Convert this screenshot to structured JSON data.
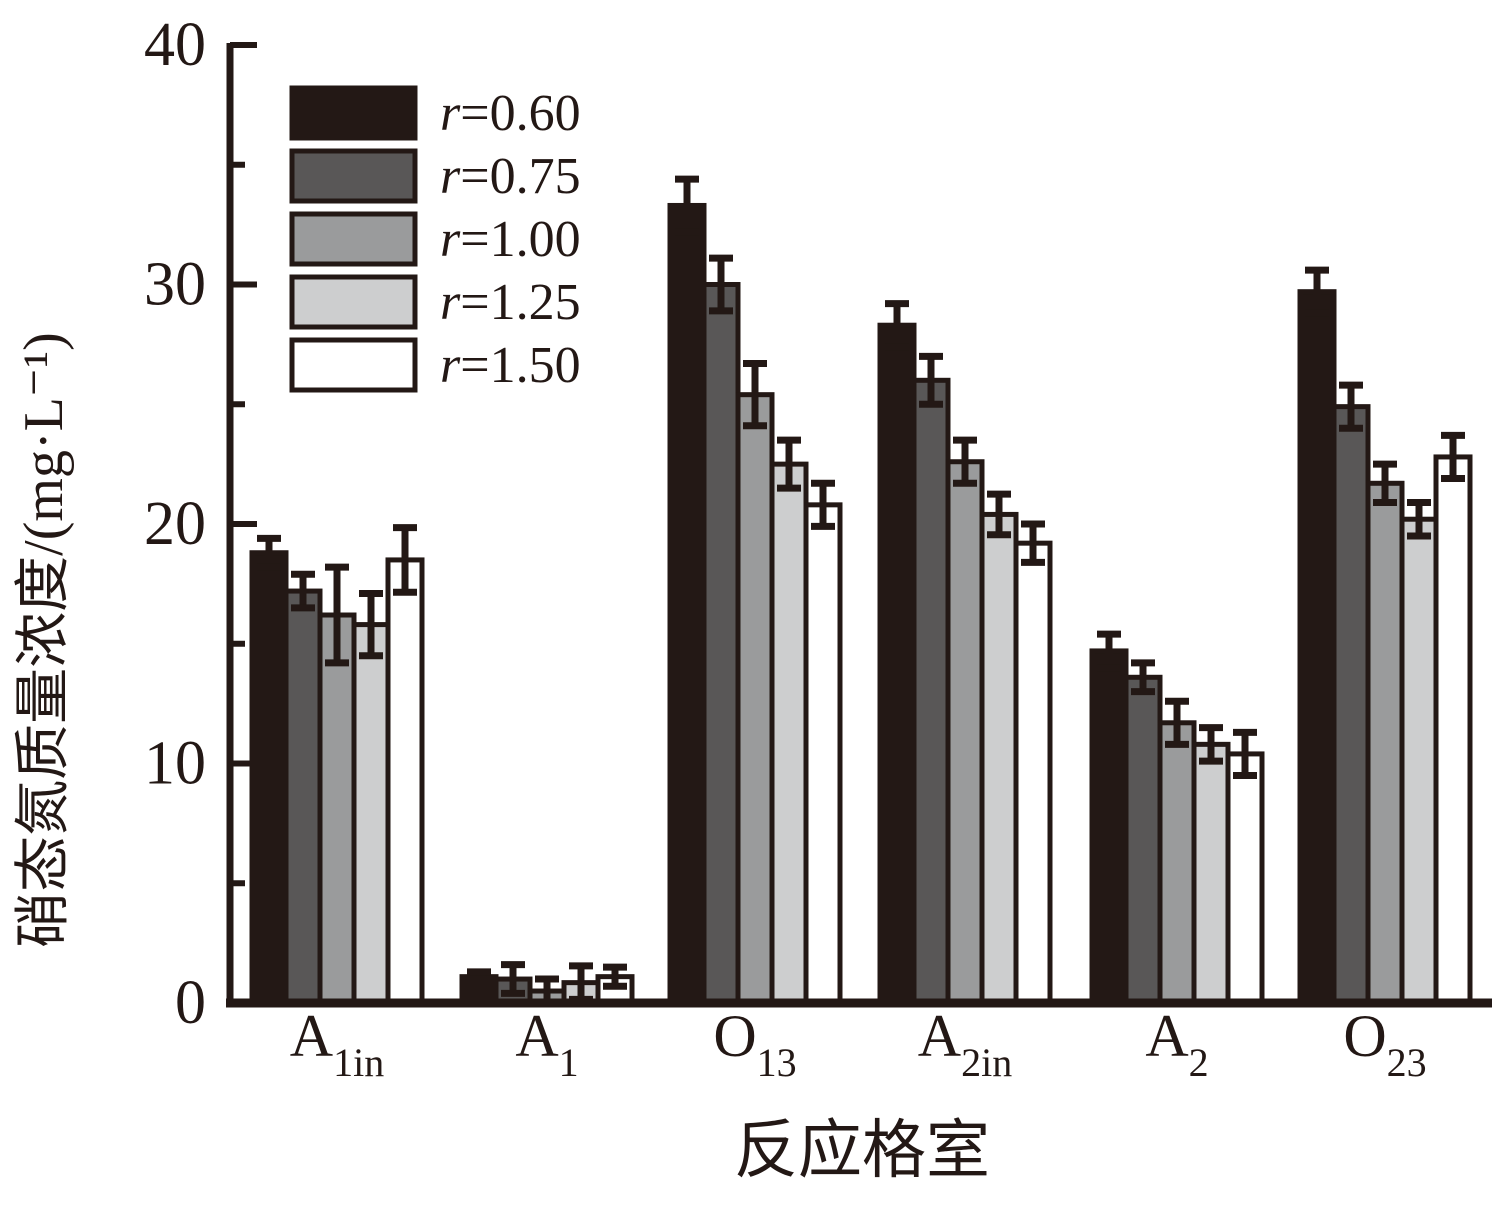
{
  "figure": {
    "background": "#ffffff",
    "ink": "#231815"
  },
  "chart_data": {
    "type": "bar",
    "title": "",
    "xlabel": "反应格室",
    "ylabel": "硝态氮质量浓度/(mg·L⁻¹)",
    "ylim": [
      0,
      40
    ],
    "y_major_ticks": [
      0,
      10,
      20,
      30,
      40
    ],
    "y_minor_ticks": [
      5,
      15,
      25,
      35
    ],
    "grid": false,
    "legend_position": "upper-left-inside",
    "error_bars": true,
    "categories": [
      {
        "id": "A1in",
        "main": "A",
        "sub": "1in"
      },
      {
        "id": "A1",
        "main": "A",
        "sub": "1"
      },
      {
        "id": "O13",
        "main": "O",
        "sub": "13"
      },
      {
        "id": "A2in",
        "main": "A",
        "sub": "2in"
      },
      {
        "id": "A2",
        "main": "A",
        "sub": "2"
      },
      {
        "id": "O23",
        "main": "O",
        "sub": "23"
      }
    ],
    "series": [
      {
        "name": "r=0.60",
        "var": "r",
        "rest": "=0.60",
        "color": "#231815",
        "values": [
          18.8,
          1.1,
          33.3,
          28.3,
          14.7,
          29.7
        ],
        "errors": [
          0.6,
          0.2,
          1.1,
          0.9,
          0.7,
          0.9
        ]
      },
      {
        "name": "r=0.75",
        "var": "r",
        "rest": "=0.75",
        "color": "#595757",
        "values": [
          17.2,
          1.0,
          30.0,
          26.0,
          13.6,
          24.9
        ],
        "errors": [
          0.7,
          0.6,
          1.1,
          1.0,
          0.6,
          0.9
        ]
      },
      {
        "name": "r=1.00",
        "var": "r",
        "rest": "=1.00",
        "color": "#9a9b9c",
        "values": [
          16.2,
          0.5,
          25.4,
          22.6,
          11.7,
          21.7
        ],
        "errors": [
          2.0,
          0.5,
          1.3,
          0.9,
          0.9,
          0.8
        ]
      },
      {
        "name": "r=1.25",
        "var": "r",
        "rest": "=1.25",
        "color": "#cdcecf",
        "values": [
          15.8,
          0.85,
          22.5,
          20.4,
          10.8,
          20.2
        ],
        "errors": [
          1.3,
          0.7,
          1.0,
          0.85,
          0.7,
          0.7
        ]
      },
      {
        "name": "r=1.50",
        "var": "r",
        "rest": "=1.50",
        "color": "#ffffff",
        "values": [
          18.5,
          1.1,
          20.8,
          19.2,
          10.4,
          22.8
        ],
        "errors": [
          1.35,
          0.4,
          0.9,
          0.8,
          0.9,
          0.9
        ]
      }
    ]
  }
}
